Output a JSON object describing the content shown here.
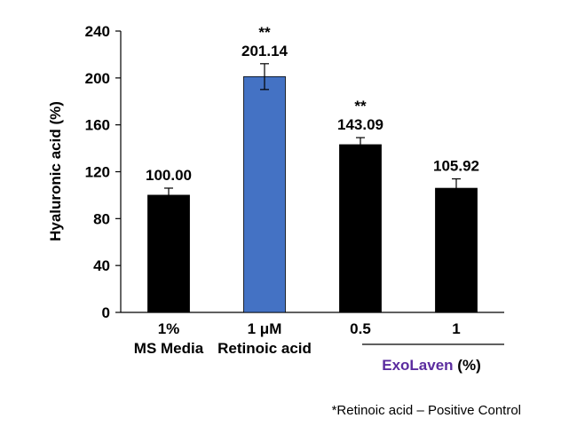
{
  "chart_data": {
    "type": "bar",
    "categories": [
      [
        "1%",
        "MS Media"
      ],
      [
        "1 μM",
        "Retinoic acid"
      ],
      [
        "0.5"
      ],
      [
        "1"
      ]
    ],
    "values": [
      100.0,
      201.14,
      143.09,
      105.92
    ],
    "value_labels": [
      "100.00",
      "201.14",
      "143.09",
      "105.92"
    ],
    "errors": [
      6,
      11,
      6,
      8
    ],
    "significance": [
      "",
      "**",
      "**",
      ""
    ],
    "bar_colors": [
      "#000000",
      "#4472C4",
      "#000000",
      "#000000"
    ],
    "ylabel": "Hyaluronic acid (%)",
    "ylim": [
      0,
      240
    ],
    "yticks": [
      "0",
      "40",
      "80",
      "120",
      "160",
      "200",
      "240"
    ],
    "group_label": {
      "name": "ExoLaven",
      "name_color": "#5B2C9F",
      "suffix": " (%)"
    },
    "footnote": "*Retinoic acid – Positive Control",
    "grid": false
  }
}
